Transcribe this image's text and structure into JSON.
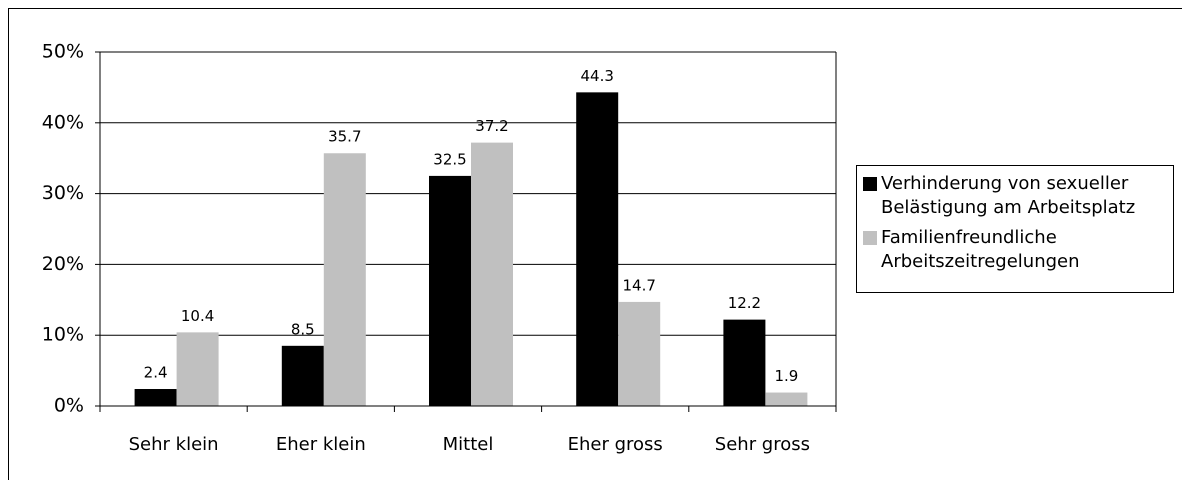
{
  "chart_data": {
    "type": "bar",
    "categories": [
      "Sehr klein",
      "Eher klein",
      "Mittel",
      "Eher gross",
      "Sehr gross"
    ],
    "series": [
      {
        "name": "Verhinderung von sexueller Belästigung am Arbeitsplatz",
        "color": "#000000",
        "values": [
          2.4,
          8.5,
          32.5,
          44.3,
          12.2
        ]
      },
      {
        "name": "Familienfreundliche Arbeitszeitregelungen",
        "color": "#c0c0c0",
        "values": [
          10.4,
          35.7,
          37.2,
          14.7,
          1.9
        ]
      }
    ],
    "ylim": [
      0,
      50
    ],
    "yticks": [
      {
        "value": 0,
        "label": "0%"
      },
      {
        "value": 10,
        "label": "10%"
      },
      {
        "value": 20,
        "label": "20%"
      },
      {
        "value": 30,
        "label": "30%"
      },
      {
        "value": 40,
        "label": "40%"
      },
      {
        "value": 50,
        "label": "50%"
      }
    ],
    "grid": true,
    "legend": "right"
  }
}
